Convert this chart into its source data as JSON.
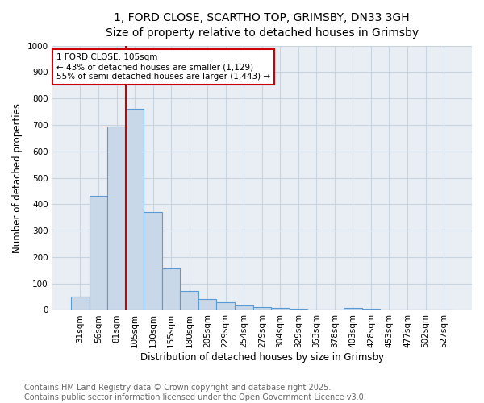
{
  "title_line1": "1, FORD CLOSE, SCARTHO TOP, GRIMSBY, DN33 3GH",
  "title_line2": "Size of property relative to detached houses in Grimsby",
  "xlabel": "Distribution of detached houses by size in Grimsby",
  "ylabel": "Number of detached properties",
  "bar_labels": [
    "31sqm",
    "56sqm",
    "81sqm",
    "105sqm",
    "130sqm",
    "155sqm",
    "180sqm",
    "205sqm",
    "229sqm",
    "254sqm",
    "279sqm",
    "304sqm",
    "329sqm",
    "353sqm",
    "378sqm",
    "403sqm",
    "428sqm",
    "453sqm",
    "477sqm",
    "502sqm",
    "527sqm"
  ],
  "bar_values": [
    50,
    430,
    695,
    760,
    370,
    157,
    73,
    40,
    30,
    17,
    12,
    8,
    5,
    2,
    0,
    8,
    5,
    0,
    0,
    0,
    0
  ],
  "bar_color": "#c8d8e8",
  "bar_edge_color": "#5b9bd5",
  "vline_x": 2.5,
  "vline_color": "#cc0000",
  "annotation_text": "1 FORD CLOSE: 105sqm\n← 43% of detached houses are smaller (1,129)\n55% of semi-detached houses are larger (1,443) →",
  "annotation_box_color": "#cc0000",
  "ylim": [
    0,
    1000
  ],
  "yticks": [
    0,
    100,
    200,
    300,
    400,
    500,
    600,
    700,
    800,
    900,
    1000
  ],
  "grid_color": "#c8d4e0",
  "bg_color": "#e8eef4",
  "footnote": "Contains HM Land Registry data © Crown copyright and database right 2025.\nContains public sector information licensed under the Open Government Licence v3.0.",
  "footnote_fontsize": 7,
  "title_fontsize1": 10,
  "title_fontsize2": 9,
  "xlabel_fontsize": 8.5,
  "ylabel_fontsize": 8.5,
  "tick_fontsize": 7.5,
  "annot_fontsize": 7.5
}
